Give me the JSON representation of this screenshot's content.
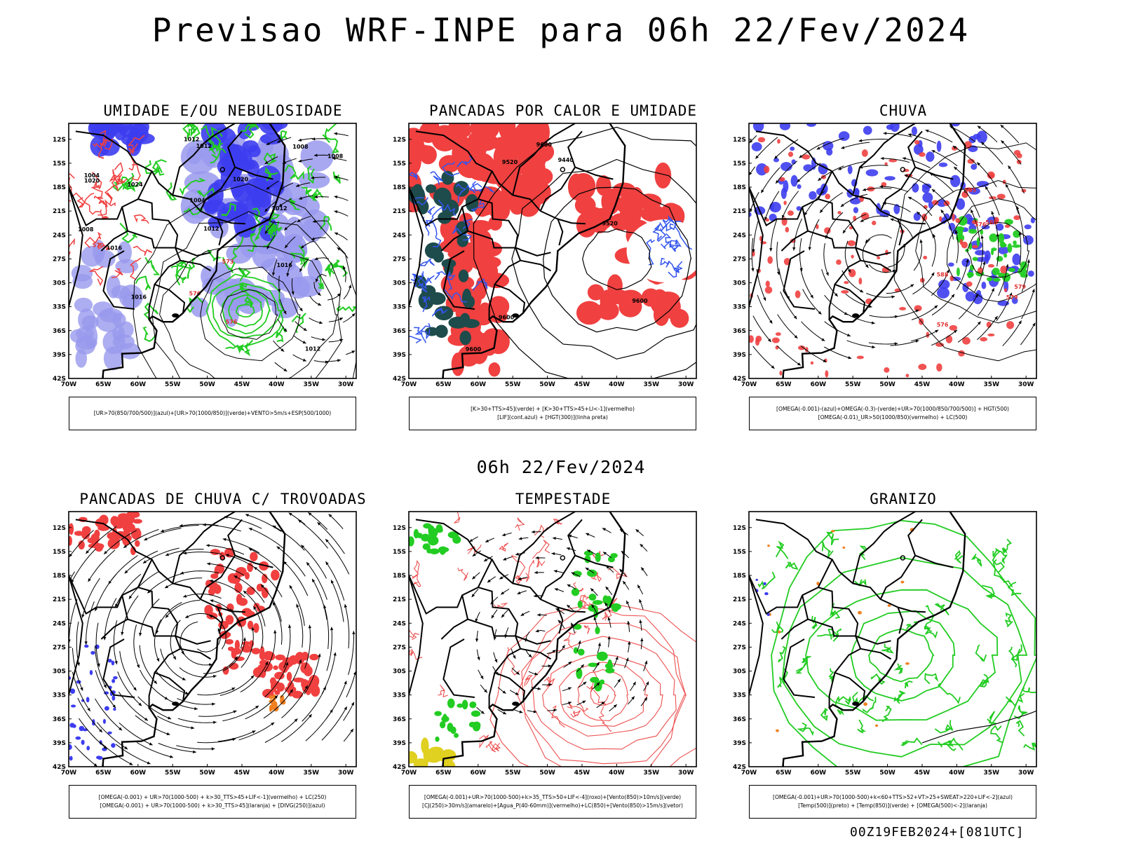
{
  "header": {
    "title": "Previsao WRF-INPE  para 06h 22/Fev/2024",
    "mid_title": "06h 22/Fev/2024",
    "run_stamp": "00Z19FEB2024+[081UTC]"
  },
  "axes": {
    "lat_labels": [
      "12S",
      "15S",
      "18S",
      "21S",
      "24S",
      "27S",
      "30S",
      "33S",
      "36S",
      "39S",
      "42S"
    ],
    "lon_labels": [
      "70W",
      "65W",
      "60W",
      "55W",
      "50W",
      "45W",
      "40W",
      "35W",
      "30W"
    ]
  },
  "colors": {
    "blue": "#3d3df0",
    "lavender": "#9999ee",
    "green": "#22cc22",
    "red": "#f04040",
    "darkteal": "#1e4b4b",
    "orange": "#f08020",
    "yellow": "#e0d020",
    "black": "#000000"
  },
  "panels": [
    {
      "title": "UMIDADE E/OU NEBULOSIDADE",
      "legend": [
        "[UR>70(850/700/500)](azul)+[UR>70(1000/850)](verde)+VENTO>5m/s+ESP(500/1000)"
      ],
      "labels": [
        "1008",
        "1012",
        "1012",
        "1008",
        "1004",
        "1012",
        "1016",
        "1020",
        "1004",
        "1008",
        "1012",
        "1016",
        "1012",
        "1020",
        "1024",
        "1016",
        "576",
        "570",
        "573",
        "576"
      ]
    },
    {
      "title": "PANCADAS POR CALOR E UMIDADE",
      "legend": [
        "[K>30+TTS>45](verde) + [K>30+TTS>45+LI<-1](vermelho)",
        "[LIF](cont.azul) + [HGT(300)](linha preta)"
      ],
      "labels": [
        "9520",
        "9600",
        "9600",
        "9600",
        "9680",
        "9440",
        "9520"
      ]
    },
    {
      "title": "CHUVA",
      "legend": [
        "[OMEGA(-0.001)-(azul)+OMEGA(-0.3)-(verde)+UR>70(1000/850/700/500)] + HGT(500)",
        "[OMEGA(-0.01)_UR>50(1000/850)(vermelho) + LC(500)"
      ],
      "labels": [
        "588",
        "579",
        "576",
        "579",
        "576",
        "585",
        "588"
      ]
    },
    {
      "title": "PANCADAS DE CHUVA C/ TROVOADAS",
      "legend": [
        "[OMEGA(-0.001) + UR>70(1000-500) + k>30_TTS>45+LIF<-1](vermelho) + LC(250)",
        "[OMEGA(-0.001) + UR>70(1000-500) + k>30_TTS>45](laranja) + [DIVG(250)](azul)"
      ],
      "labels": []
    },
    {
      "title": "TEMPESTADE",
      "legend": [
        "[OMEGA(-0.001)+UR>70(1000-500)+k>35_TTS>50+LIF<-4](roxo)+[Vento(850)>10m/s](verde)",
        "[CJ(250)>30m/s](amarelo)+[Agua_P(40-60mm)](vermelho)+LC(850)+[Vento(850)>15m/s](vetor)"
      ],
      "labels": []
    },
    {
      "title": "GRANIZO",
      "legend": [
        "[OMEGA(-0.001)+UR>70(1000-500)+k<60+TTS>52+VT>25+SWEAT>220+LIF<-2](azul)",
        "[Temp(500)](preto) + [Temp(850)](verde) + [OMEGA(500)<-2](laranja)"
      ],
      "labels": []
    }
  ]
}
